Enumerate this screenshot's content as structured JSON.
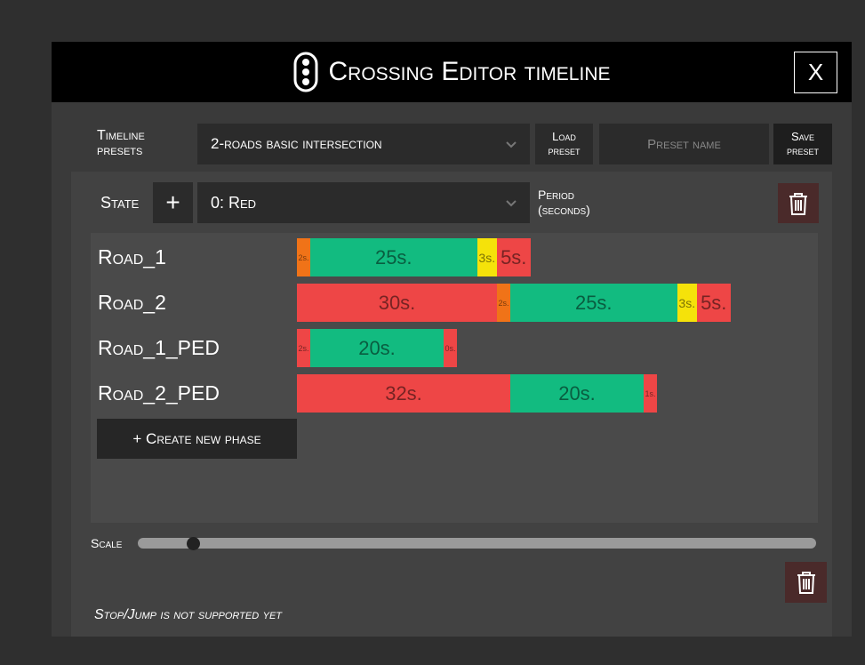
{
  "header": {
    "title": "Crossing Editor timeline",
    "close": "X"
  },
  "presets": {
    "label": "Timeline presets",
    "selected": "2-roads basic intersection",
    "load": "Load preset",
    "name_placeholder": "Preset name",
    "save": "Save preset"
  },
  "state": {
    "label": "State",
    "add": "+",
    "selected": "0: Red",
    "period": "Period (seconds)"
  },
  "roads": [
    {
      "name": "Road_1",
      "phases": [
        {
          "label": "2s.",
          "color": "#f07318"
        },
        {
          "label": "25s.",
          "color": "#12bb80"
        },
        {
          "label": "3s.",
          "color": "#f5e20a"
        },
        {
          "label": "5s.",
          "color": "#ee4646"
        }
      ]
    },
    {
      "name": "Road_2",
      "phases": [
        {
          "label": "30s.",
          "color": "#ee4646"
        },
        {
          "label": "2s.",
          "color": "#f07318"
        },
        {
          "label": "25s.",
          "color": "#12bb80"
        },
        {
          "label": "3s.",
          "color": "#f5e20a"
        },
        {
          "label": "5s.",
          "color": "#ee4646"
        }
      ]
    },
    {
      "name": "Road_1_PED",
      "phases": [
        {
          "label": "2s.",
          "color": "#ee4646"
        },
        {
          "label": "20s.",
          "color": "#12bb80"
        },
        {
          "label": "0s.",
          "color": "#ee4646"
        }
      ]
    },
    {
      "name": "Road_2_PED",
      "phases": [
        {
          "label": "32s.",
          "color": "#ee4646"
        },
        {
          "label": "20s.",
          "color": "#12bb80"
        },
        {
          "label": "1s.",
          "color": "#ee4646"
        }
      ]
    }
  ],
  "create_phase": "+ Create new phase",
  "scale": "Scale",
  "note": "Stop/Jump is not supported yet"
}
